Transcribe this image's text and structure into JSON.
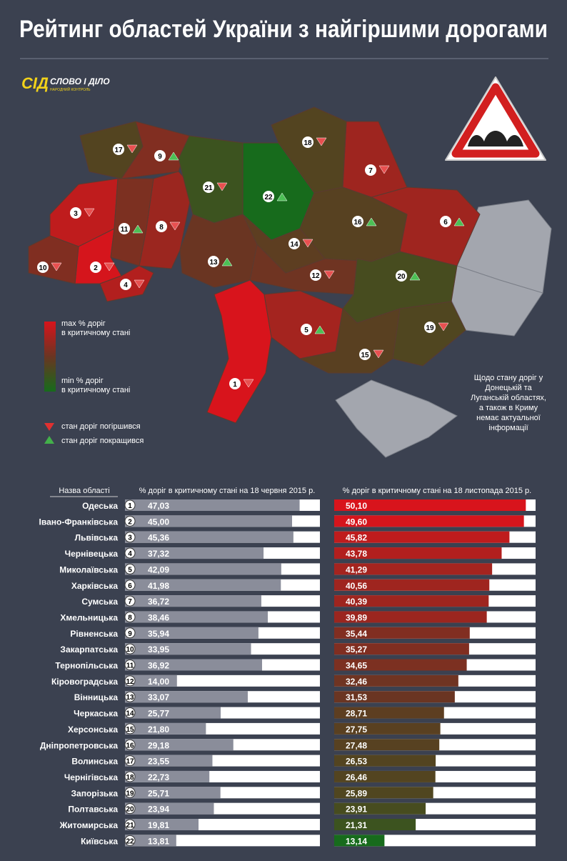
{
  "header": {
    "title": "Рейтинг областей України з найгіршими дорогами",
    "logo_mark": "СІД",
    "logo_name": "СЛОВО І ДІЛО",
    "logo_sub": "НАРОДНИЙ КОНТРОЛЬ"
  },
  "legend": {
    "max": "max % доріг в критичному стані",
    "min": "min % доріг в критичному стані",
    "worse": "стан доріг погіршився",
    "better": "стан доріг покращився"
  },
  "note": "Щодо стану доріг у Донецькій та Луганській областях, а також в Криму немає актуальної інформації",
  "table": {
    "col_name": "Назва області",
    "col_june": "% доріг в критичному стані на 18 червня 2015 р.",
    "col_nov": "% доріг в критичному стані на 18 листопада 2015 р.",
    "rows": [
      {
        "rank": 1,
        "name": "Одеська",
        "june": 47.03,
        "june_label": "47,03",
        "nov": 50.1,
        "nov_label": "50,10"
      },
      {
        "rank": 2,
        "name": "Івано-Франківська",
        "june": 45.0,
        "june_label": "45,00",
        "nov": 49.6,
        "nov_label": "49,60"
      },
      {
        "rank": 3,
        "name": "Львівська",
        "june": 45.36,
        "june_label": "45,36",
        "nov": 45.82,
        "nov_label": "45,82"
      },
      {
        "rank": 4,
        "name": "Чернівецька",
        "june": 37.32,
        "june_label": "37,32",
        "nov": 43.78,
        "nov_label": "43,78"
      },
      {
        "rank": 5,
        "name": "Миколаївська",
        "june": 42.09,
        "june_label": "42,09",
        "nov": 41.29,
        "nov_label": "41,29"
      },
      {
        "rank": 6,
        "name": "Харківська",
        "june": 41.98,
        "june_label": "41,98",
        "nov": 40.56,
        "nov_label": "40,56"
      },
      {
        "rank": 7,
        "name": "Сумська",
        "june": 36.72,
        "june_label": "36,72",
        "nov": 40.39,
        "nov_label": "40,39"
      },
      {
        "rank": 8,
        "name": "Хмельницька",
        "june": 38.46,
        "june_label": "38,46",
        "nov": 39.89,
        "nov_label": "39,89"
      },
      {
        "rank": 9,
        "name": "Рівненська",
        "june": 35.94,
        "june_label": "35,94",
        "nov": 35.44,
        "nov_label": "35,44"
      },
      {
        "rank": 10,
        "name": "Закарпатська",
        "june": 33.95,
        "june_label": "33,95",
        "nov": 35.27,
        "nov_label": "35,27"
      },
      {
        "rank": 11,
        "name": "Тернопільська",
        "june": 36.92,
        "june_label": "36,92",
        "nov": 34.65,
        "nov_label": "34,65"
      },
      {
        "rank": 12,
        "name": "Кіровоградська",
        "june": 14.0,
        "june_label": "14,00",
        "nov": 32.46,
        "nov_label": "32,46"
      },
      {
        "rank": 13,
        "name": "Вінницька",
        "june": 33.07,
        "june_label": "33,07",
        "nov": 31.53,
        "nov_label": "31,53"
      },
      {
        "rank": 14,
        "name": "Черкаська",
        "june": 25.77,
        "june_label": "25,77",
        "nov": 28.71,
        "nov_label": "28,71"
      },
      {
        "rank": 15,
        "name": "Херсонська",
        "june": 21.8,
        "june_label": "21,80",
        "nov": 27.75,
        "nov_label": "27,75"
      },
      {
        "rank": 16,
        "name": "Дніпропетровська",
        "june": 29.18,
        "june_label": "29,18",
        "nov": 27.48,
        "nov_label": "27,48"
      },
      {
        "rank": 17,
        "name": "Волинська",
        "june": 23.55,
        "june_label": "23,55",
        "nov": 26.53,
        "nov_label": "26,53"
      },
      {
        "rank": 18,
        "name": "Чернігівська",
        "june": 22.73,
        "june_label": "22,73",
        "nov": 26.46,
        "nov_label": "26,46"
      },
      {
        "rank": 19,
        "name": "Запорізька",
        "june": 25.71,
        "june_label": "25,71",
        "nov": 25.89,
        "nov_label": "25,89"
      },
      {
        "rank": 20,
        "name": "Полтавська",
        "june": 23.94,
        "june_label": "23,94",
        "nov": 23.91,
        "nov_label": "23,91"
      },
      {
        "rank": 21,
        "name": "Житомирська",
        "june": 19.81,
        "june_label": "19,81",
        "nov": 21.31,
        "nov_label": "21,31"
      },
      {
        "rank": 22,
        "name": "Київська",
        "june": 13.81,
        "june_label": "13,81",
        "nov": 13.14,
        "nov_label": "13,14"
      }
    ]
  }
}
